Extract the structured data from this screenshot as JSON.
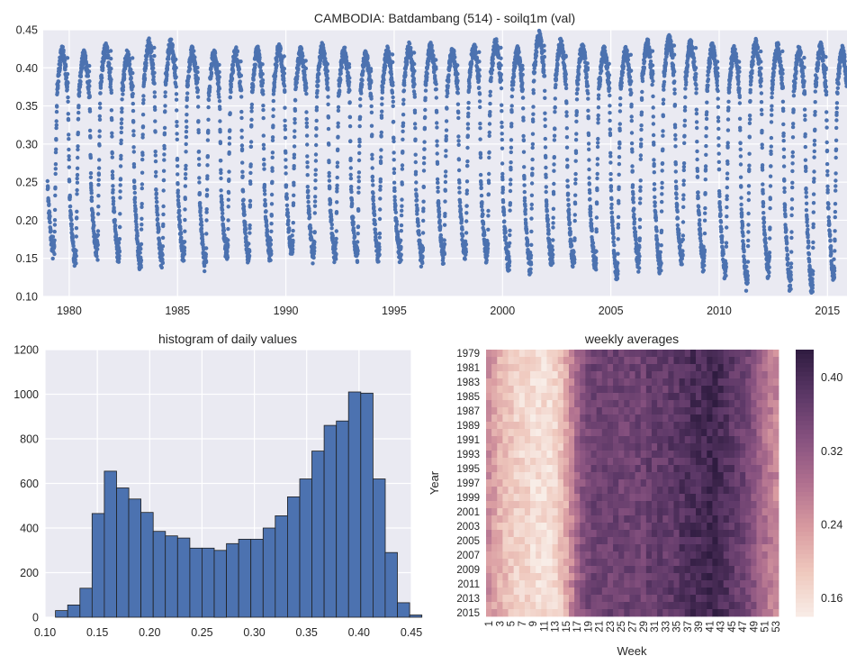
{
  "chart_data": [
    {
      "type": "scatter",
      "title": "CAMBODIA: Batdambang (514) - soilq1m (val)",
      "xlabel": "",
      "ylabel": "",
      "xlim": [
        1978.8,
        2015.9
      ],
      "ylim": [
        0.1,
        0.45
      ],
      "x_ticks": [
        "1980",
        "1985",
        "1990",
        "1995",
        "2000",
        "2005",
        "2010",
        "2015"
      ],
      "y_ticks": [
        "0.10",
        "0.15",
        "0.20",
        "0.25",
        "0.30",
        "0.35",
        "0.40",
        "0.45"
      ],
      "grid": true,
      "color": "#4c72b0",
      "years": [
        1979,
        1980,
        1981,
        1982,
        1983,
        1984,
        1985,
        1986,
        1987,
        1988,
        1989,
        1990,
        1991,
        1992,
        1993,
        1994,
        1995,
        1996,
        1997,
        1998,
        1999,
        2000,
        2001,
        2002,
        2003,
        2004,
        2005,
        2006,
        2007,
        2008,
        2009,
        2010,
        2011,
        2012,
        2013,
        2014,
        2015
      ],
      "annual_min": [
        0.155,
        0.145,
        0.155,
        0.15,
        0.14,
        0.145,
        0.15,
        0.14,
        0.15,
        0.15,
        0.15,
        0.155,
        0.15,
        0.15,
        0.15,
        0.15,
        0.15,
        0.145,
        0.15,
        0.15,
        0.15,
        0.14,
        0.135,
        0.14,
        0.14,
        0.14,
        0.125,
        0.14,
        0.135,
        0.145,
        0.14,
        0.13,
        0.115,
        0.13,
        0.115,
        0.11,
        0.125
      ],
      "annual_max": [
        0.43,
        0.425,
        0.435,
        0.425,
        0.44,
        0.44,
        0.43,
        0.425,
        0.43,
        0.43,
        0.435,
        0.43,
        0.435,
        0.43,
        0.425,
        0.43,
        0.435,
        0.435,
        0.43,
        0.435,
        0.44,
        0.43,
        0.45,
        0.44,
        0.435,
        0.43,
        0.43,
        0.44,
        0.445,
        0.44,
        0.435,
        0.43,
        0.44,
        0.435,
        0.43,
        0.435,
        0.43
      ]
    },
    {
      "type": "bar",
      "title": "histogram of daily values",
      "xlabel": "",
      "ylabel": "",
      "xlim": [
        0.1,
        0.45
      ],
      "ylim": [
        0,
        1200
      ],
      "x_ticks": [
        "0.10",
        "0.15",
        "0.20",
        "0.25",
        "0.30",
        "0.35",
        "0.40",
        "0.45"
      ],
      "y_ticks": [
        "0",
        "200",
        "400",
        "600",
        "800",
        "1000",
        "1200"
      ],
      "bin_edges": [
        0.11,
        0.12166,
        0.13333,
        0.145,
        0.15667,
        0.16833,
        0.18,
        0.19167,
        0.20333,
        0.215,
        0.22667,
        0.23833,
        0.25,
        0.26167,
        0.27333,
        0.285,
        0.29667,
        0.30833,
        0.32,
        0.33167,
        0.34333,
        0.355,
        0.36667,
        0.37833,
        0.39,
        0.40167,
        0.41333,
        0.425,
        0.43667,
        0.44833
      ],
      "values": [
        30,
        55,
        130,
        465,
        655,
        580,
        530,
        470,
        385,
        365,
        355,
        310,
        310,
        300,
        330,
        350,
        350,
        400,
        455,
        540,
        620,
        745,
        860,
        880,
        1010,
        1005,
        620,
        290,
        65,
        10
      ],
      "grid": true,
      "color": "#4c72b0"
    },
    {
      "type": "heatmap",
      "title": "weekly averages",
      "xlabel": "Week",
      "ylabel": "Year",
      "x_ticks": [
        "1",
        "3",
        "5",
        "7",
        "9",
        "11",
        "13",
        "15",
        "17",
        "19",
        "21",
        "23",
        "25",
        "27",
        "29",
        "31",
        "33",
        "35",
        "37",
        "39",
        "41",
        "43",
        "45",
        "47",
        "49",
        "51",
        "53"
      ],
      "y_ticks": [
        "1979",
        "1981",
        "1983",
        "1985",
        "1987",
        "1989",
        "1991",
        "1993",
        "1995",
        "1997",
        "1999",
        "2001",
        "2003",
        "2005",
        "2007",
        "2009",
        "2011",
        "2013",
        "2015"
      ],
      "colorbar_ticks": [
        "0.40",
        "0.32",
        "0.24",
        "0.16"
      ],
      "value_range": [
        0.14,
        0.43
      ],
      "colormap": [
        "#f8ede7",
        "#efc8bd",
        "#d89aa0",
        "#b0708f",
        "#86517f",
        "#5b3766",
        "#2f1c40"
      ],
      "years": [
        1979,
        1980,
        1981,
        1982,
        1983,
        1984,
        1985,
        1986,
        1987,
        1988,
        1989,
        1990,
        1991,
        1992,
        1993,
        1994,
        1995,
        1996,
        1997,
        1998,
        1999,
        2000,
        2001,
        2002,
        2003,
        2004,
        2005,
        2006,
        2007,
        2008,
        2009,
        2010,
        2011,
        2012,
        2013,
        2014,
        2015
      ],
      "weeks": 53,
      "weekly_profile": [
        0.25,
        0.23,
        0.21,
        0.2,
        0.19,
        0.18,
        0.17,
        0.17,
        0.16,
        0.16,
        0.16,
        0.16,
        0.17,
        0.19,
        0.22,
        0.26,
        0.3,
        0.33,
        0.35,
        0.36,
        0.36,
        0.36,
        0.36,
        0.36,
        0.36,
        0.36,
        0.36,
        0.36,
        0.36,
        0.37,
        0.37,
        0.37,
        0.37,
        0.38,
        0.38,
        0.39,
        0.39,
        0.4,
        0.4,
        0.4,
        0.41,
        0.41,
        0.4,
        0.39,
        0.38,
        0.37,
        0.36,
        0.35,
        0.33,
        0.31,
        0.29,
        0.27,
        0.26
      ]
    }
  ]
}
